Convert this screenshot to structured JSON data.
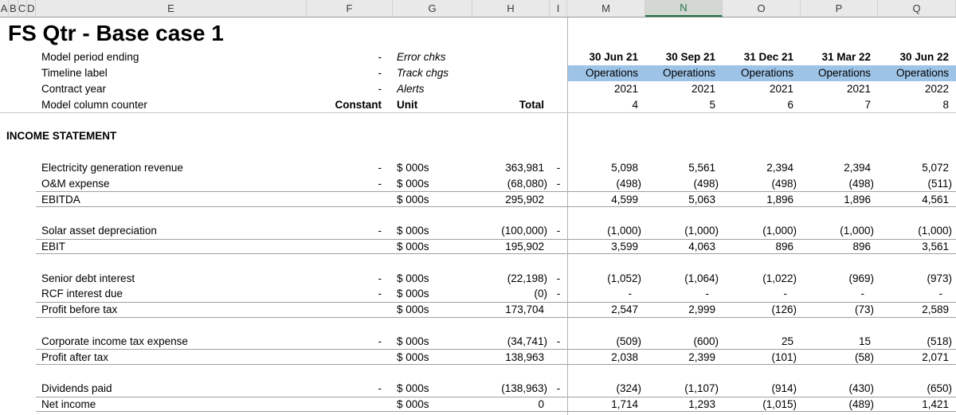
{
  "sheet": {
    "title": "FS Qtr - Base case 1",
    "column_letters": [
      "A",
      "B",
      "C",
      "D",
      "E",
      "F",
      "G",
      "H",
      "I",
      "M",
      "N",
      "O",
      "P",
      "Q"
    ],
    "selected_column": "N",
    "rows": [
      {
        "type": "meta",
        "label": "Model period ending",
        "f": "-",
        "g": "Error chks",
        "g_italic": true,
        "cols": [
          "30 Jun 21",
          "30 Sep 21",
          "31 Dec 21",
          "31 Mar 22",
          "30 Jun 22"
        ],
        "cols_bold": true
      },
      {
        "type": "meta",
        "label": "Timeline label",
        "f": "-",
        "g": "Track chgs",
        "g_italic": true,
        "cols": [
          "Operations",
          "Operations",
          "Operations",
          "Operations",
          "Operations"
        ],
        "cols_highlight": true
      },
      {
        "type": "meta",
        "label": "Contract year",
        "f": "-",
        "g": "Alerts",
        "g_italic": true,
        "cols": [
          "2021",
          "2021",
          "2021",
          "2021",
          "2022"
        ]
      },
      {
        "type": "meta",
        "label": "Model column counter",
        "f": "Constant",
        "f_bold": true,
        "g": "Unit",
        "g_bold": true,
        "h": "Total",
        "h_bold": true,
        "cols": [
          "4",
          "5",
          "6",
          "7",
          "8"
        ]
      },
      {
        "type": "blank"
      },
      {
        "type": "section",
        "label": "INCOME STATEMENT"
      },
      {
        "type": "blank"
      },
      {
        "type": "data",
        "label": "Electricity generation revenue",
        "f": "-",
        "unit": "$ 000s",
        "total": "363,981",
        "i": "-",
        "cols": [
          "5,098",
          "5,561",
          "2,394",
          "2,394",
          "5,072"
        ]
      },
      {
        "type": "data",
        "label": "O&M expense",
        "f": "-",
        "unit": "$ 000s",
        "total": "(68,080)",
        "i": "-",
        "cols": [
          "(498)",
          "(498)",
          "(498)",
          "(498)",
          "(511)"
        ]
      },
      {
        "type": "data",
        "label": "EBITDA",
        "unit": "$ 000s",
        "total": "295,902",
        "total_row": true,
        "cols": [
          "4,599",
          "5,063",
          "1,896",
          "1,896",
          "4,561"
        ]
      },
      {
        "type": "blank"
      },
      {
        "type": "data",
        "label": "Solar asset depreciation",
        "f": "-",
        "unit": "$ 000s",
        "total": "(100,000)",
        "i": "-",
        "cols": [
          "(1,000)",
          "(1,000)",
          "(1,000)",
          "(1,000)",
          "(1,000)"
        ]
      },
      {
        "type": "data",
        "label": "EBIT",
        "unit": "$ 000s",
        "total": "195,902",
        "total_row": true,
        "cols": [
          "3,599",
          "4,063",
          "896",
          "896",
          "3,561"
        ]
      },
      {
        "type": "blank"
      },
      {
        "type": "data",
        "label": "Senior debt interest",
        "f": "-",
        "unit": "$ 000s",
        "total": "(22,198)",
        "i": "-",
        "cols": [
          "(1,052)",
          "(1,064)",
          "(1,022)",
          "(969)",
          "(973)"
        ]
      },
      {
        "type": "data",
        "label": "RCF interest due",
        "f": "-",
        "unit": "$ 000s",
        "total": "(0)",
        "i": "-",
        "cols": [
          "-",
          "-",
          "-",
          "-",
          "-"
        ]
      },
      {
        "type": "data",
        "label": "Profit before tax",
        "unit": "$ 000s",
        "total": "173,704",
        "total_row": true,
        "cols": [
          "2,547",
          "2,999",
          "(126)",
          "(73)",
          "2,589"
        ]
      },
      {
        "type": "blank"
      },
      {
        "type": "data",
        "label": "Corporate income tax expense",
        "f": "-",
        "unit": "$ 000s",
        "total": "(34,741)",
        "i": "-",
        "cols": [
          "(509)",
          "(600)",
          "25",
          "15",
          "(518)"
        ]
      },
      {
        "type": "data",
        "label": "Profit after tax",
        "unit": "$ 000s",
        "total": "138,963",
        "total_row": true,
        "cols": [
          "2,038",
          "2,399",
          "(101)",
          "(58)",
          "2,071"
        ]
      },
      {
        "type": "blank"
      },
      {
        "type": "data",
        "label": "Dividends paid",
        "f": "-",
        "unit": "$ 000s",
        "total": "(138,963)",
        "i": "-",
        "cols": [
          "(324)",
          "(1,107)",
          "(914)",
          "(430)",
          "(650)"
        ]
      },
      {
        "type": "data",
        "label": "Net income",
        "unit": "$ 000s",
        "total": "0",
        "total_row": true,
        "cols": [
          "1,714",
          "1,293",
          "(1,015)",
          "(489)",
          "1,421"
        ]
      }
    ]
  },
  "colors": {
    "timeline_highlight": "#9DC3E6",
    "selected_header_green": "#1E7145"
  }
}
